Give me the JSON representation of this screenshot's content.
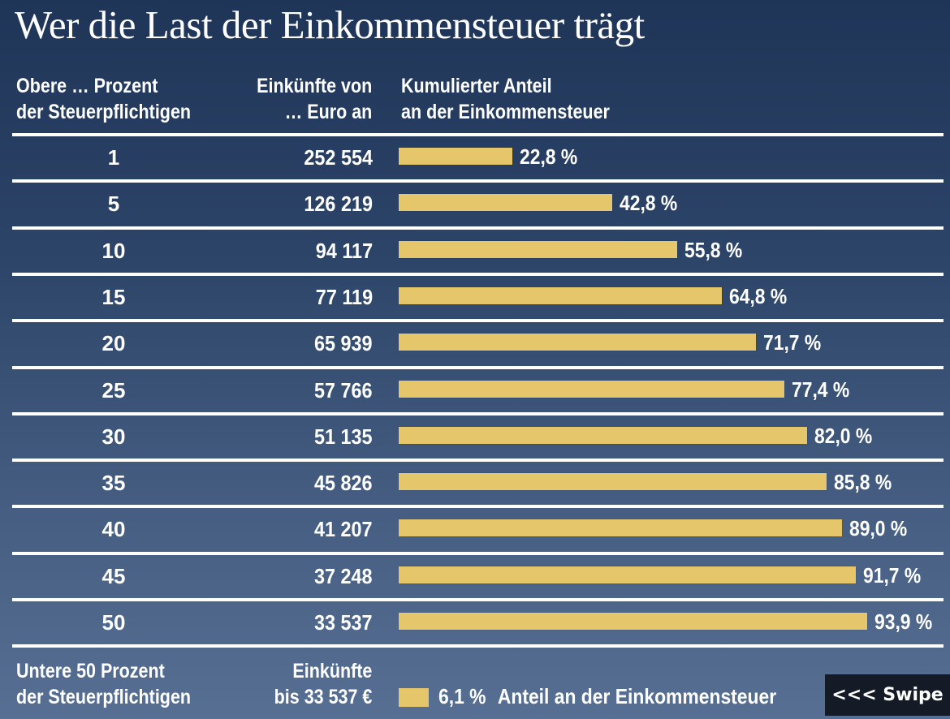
{
  "title": "Wer die Last der Einkommensteuer trägt",
  "headers": {
    "col1_line1": "Obere … Prozent",
    "col1_line2": "der Steuerpflichtigen",
    "col2_line1": "Einkünfte von",
    "col2_line2": "… Euro an",
    "col3_line1": "Kumulierter Anteil",
    "col3_line2": "an der Einkommensteuer"
  },
  "colors": {
    "bar": "#e6c66b",
    "background_top": "#1f3558",
    "background_bottom": "#566f93",
    "swipe_button": "#141b26"
  },
  "chart_data": {
    "type": "bar",
    "orientation": "horizontal",
    "title": "Wer die Last der Einkommensteuer trägt",
    "xlabel": "Kumulierter Anteil an der Einkommensteuer",
    "ylabel": "Obere … Prozent der Steuerpflichtigen",
    "xlim": [
      0,
      100
    ],
    "unit": "%",
    "categories": [
      "1",
      "5",
      "10",
      "15",
      "20",
      "25",
      "30",
      "35",
      "40",
      "45",
      "50"
    ],
    "income_from_eur": [
      "252 554",
      "126 219",
      "94 117",
      "77 119",
      "65 939",
      "57 766",
      "51 135",
      "45 826",
      "41 207",
      "37 248",
      "33 537"
    ],
    "values": [
      22.8,
      42.8,
      55.8,
      64.8,
      71.7,
      77.4,
      82.0,
      85.8,
      89.0,
      91.7,
      93.9
    ],
    "value_labels": [
      "22,8 %",
      "42,8 %",
      "55,8 %",
      "64,8 %",
      "71,7 %",
      "77,4 %",
      "82,0 %",
      "85,8 %",
      "89,0 %",
      "91,7 %",
      "93,9 %"
    ],
    "grid": false,
    "legend": {
      "position": "bottom",
      "value": 6.1,
      "value_label": "6,1 %",
      "text": "Anteil an der Einkommensteuer"
    }
  },
  "footer": {
    "col1_line1": "Untere 50 Prozent",
    "col1_line2": "der Steuerpflichtigen",
    "col2_line1": "Einkünfte",
    "col2_line2": "bis 33 537 €"
  },
  "swipe_label": "<<< Swipe"
}
